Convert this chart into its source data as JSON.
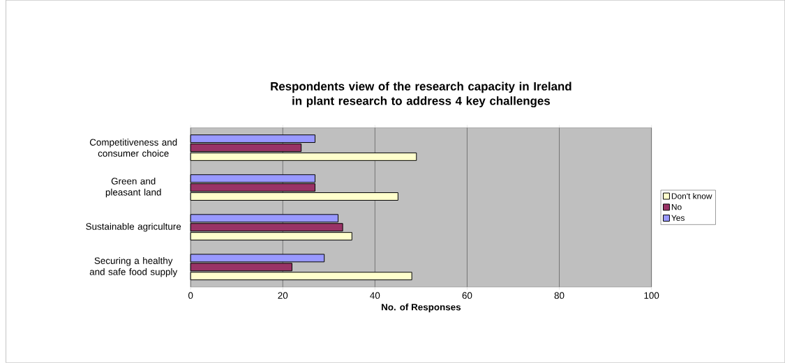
{
  "chart_data": {
    "type": "bar",
    "orientation": "horizontal",
    "title": "Respondents view of the research capacity in Ireland in plant research to address 4 key challenges",
    "xlabel": "No. of Responses",
    "categories": [
      "Competitiveness and consumer choice",
      "Green and pleasant land",
      "Sustainable agriculture",
      "Securing a healthy and safe food supply"
    ],
    "series": [
      {
        "name": "Don't know",
        "color": "#ffffcc",
        "values": [
          49,
          45,
          35,
          48
        ]
      },
      {
        "name": "No",
        "color": "#993366",
        "values": [
          24,
          27,
          33,
          22
        ]
      },
      {
        "name": "Yes",
        "color": "#9999ff",
        "values": [
          27,
          27,
          32,
          29
        ]
      }
    ],
    "xlim": [
      0,
      100
    ],
    "xticks": [
      0,
      20,
      40,
      60,
      80,
      100
    ],
    "grid": "x",
    "legend": "right"
  }
}
